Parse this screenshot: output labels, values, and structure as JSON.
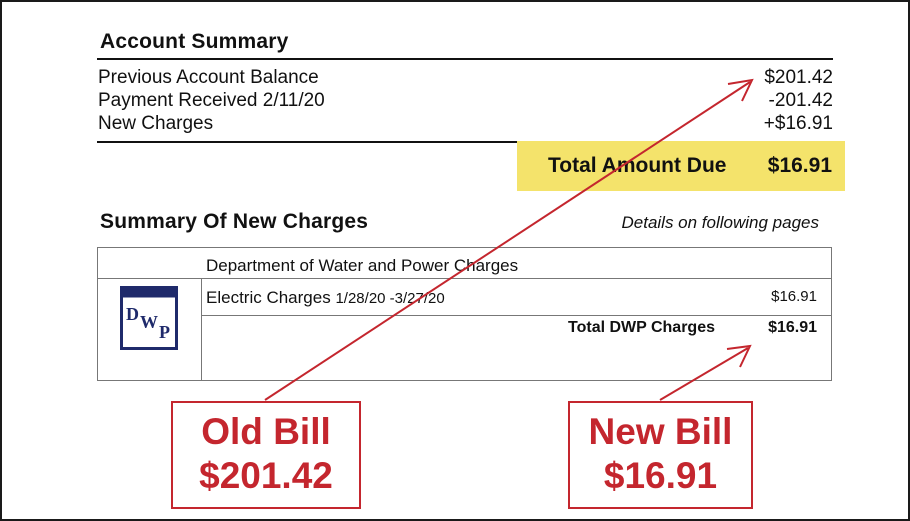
{
  "account_summary": {
    "title": "Account Summary",
    "rows": [
      {
        "label": "Previous Account Balance",
        "amount": "$201.42"
      },
      {
        "label": "Payment Received 2/11/20",
        "amount": "-201.42"
      },
      {
        "label": "New Charges",
        "amount": "+$16.91"
      }
    ],
    "total_due_label": "Total Amount Due",
    "total_due_amount": "$16.91",
    "highlight_color": "#f4e36b"
  },
  "new_charges": {
    "title": "Summary Of New Charges",
    "details_note": "Details on following pages",
    "department_title": "Department of Water and Power Charges",
    "electric_label": "Electric Charges",
    "electric_dates": "1/28/20 -3/27/20",
    "electric_amount": "$16.91",
    "total_label": "Total DWP Charges",
    "total_amount": "$16.91",
    "logo": {
      "letters": [
        "D",
        "W",
        "P"
      ],
      "color": "#1f2a6b"
    }
  },
  "callouts": {
    "old_bill": {
      "line1": "Old Bill",
      "line2": "$201.42"
    },
    "new_bill": {
      "line1": "New Bill",
      "line2": "$16.91"
    },
    "color": "#c4262e"
  }
}
